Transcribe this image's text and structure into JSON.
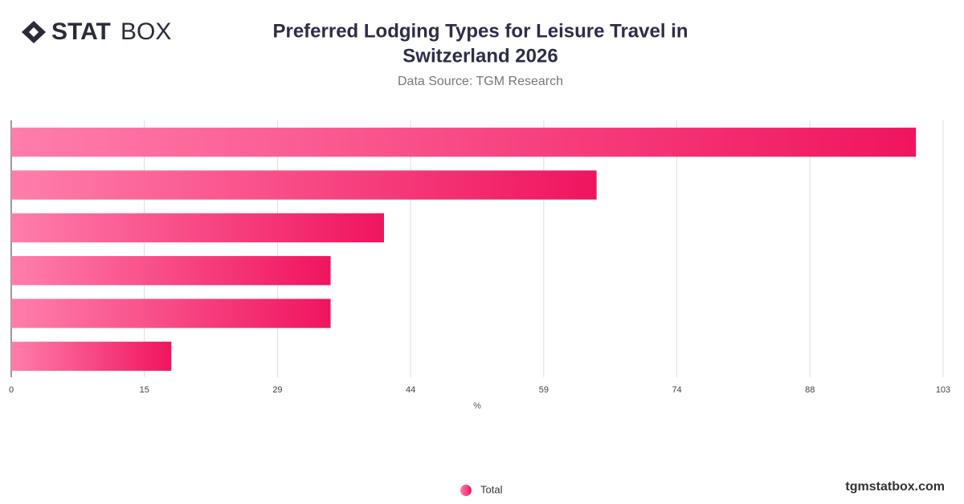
{
  "logo": {
    "bold": "STAT",
    "light": "BOX"
  },
  "footer": "tgmstatbox.com",
  "chart_data": {
    "type": "hbar",
    "title": [
      "Preferred Lodging Types for Leisure Travel in",
      "Switzerland 2026"
    ],
    "subtitle": "Data Source: TGM Research",
    "x_label": "%",
    "categories": [
      null,
      null,
      null,
      null,
      null,
      null
    ],
    "series": [
      {
        "name": "Total",
        "color": "#f0145f",
        "values": [
          100,
          64.7,
          41.2,
          35.3,
          35.3,
          17.7
        ]
      }
    ],
    "xlim": [
      0,
      103
    ],
    "xticks": [
      0,
      {
        "value": 14.714,
        "label": "15"
      },
      {
        "value": 29.429,
        "label": "29"
      },
      {
        "value": 44.143,
        "label": "44"
      },
      {
        "value": 58.857,
        "label": "59"
      },
      {
        "value": 73.571,
        "label": "74"
      },
      {
        "value": 88.286,
        "label": "88"
      },
      {
        "value": 103,
        "label": "103"
      }
    ],
    "grid": true
  }
}
